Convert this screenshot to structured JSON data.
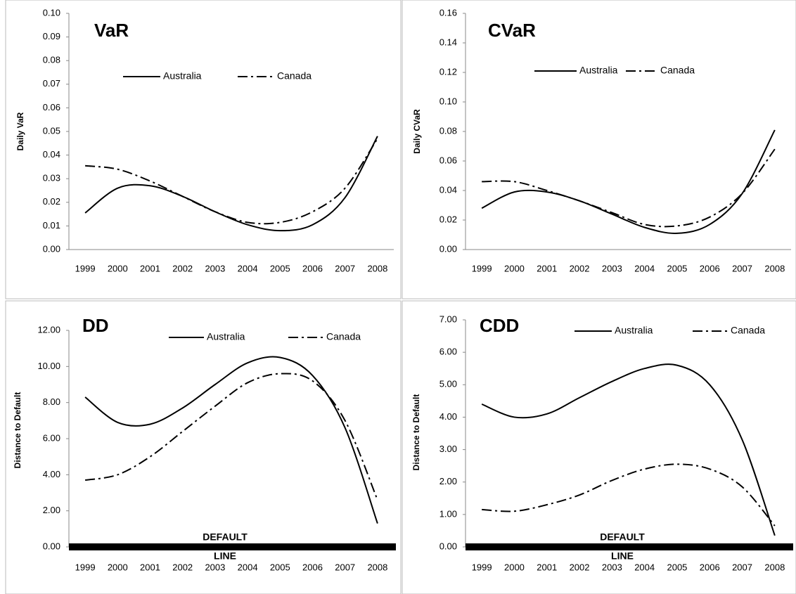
{
  "chart_data": [
    {
      "type": "line",
      "title": "VaR",
      "y_label": "Daily  VaR",
      "categories": [
        "1999",
        "2000",
        "2001",
        "2002",
        "2003",
        "2004",
        "2005",
        "2006",
        "2007",
        "2008"
      ],
      "series": [
        {
          "name": "Australia",
          "color": "#000000",
          "style": "solid",
          "values": [
            0.0155,
            0.026,
            0.027,
            0.0225,
            0.016,
            0.0105,
            0.008,
            0.0105,
            0.022,
            0.048
          ]
        },
        {
          "name": "Canada",
          "color": "#000000",
          "style": "dash-dot",
          "values": [
            0.0355,
            0.034,
            0.029,
            0.0225,
            0.016,
            0.0115,
            0.0115,
            0.016,
            0.026,
            0.047
          ]
        }
      ],
      "ylim": [
        0,
        0.1
      ],
      "yticks": [
        {
          "value": 0,
          "label": "0.00"
        },
        {
          "value": 0.01,
          "label": "0.01"
        },
        {
          "value": 0.02,
          "label": "0.02"
        },
        {
          "value": 0.03,
          "label": "0.03"
        },
        {
          "value": 0.04,
          "label": "0.04"
        },
        {
          "value": 0.05,
          "label": "0.05"
        },
        {
          "value": 0.06,
          "label": "0.06"
        },
        {
          "value": 0.07,
          "label": "0.07"
        },
        {
          "value": 0.08,
          "label": "0.08"
        },
        {
          "value": 0.09,
          "label": "0.09"
        },
        {
          "value": 0.1,
          "label": "0.10"
        }
      ],
      "baseline": "thin"
    },
    {
      "type": "line",
      "title": "CVaR",
      "y_label": "Daily CVaR",
      "categories": [
        "1999",
        "2000",
        "2001",
        "2002",
        "2003",
        "2004",
        "2005",
        "2006",
        "2007",
        "2008"
      ],
      "series": [
        {
          "name": "Australia",
          "color": "#000000",
          "style": "solid",
          "values": [
            0.028,
            0.039,
            0.039,
            0.033,
            0.024,
            0.015,
            0.011,
            0.017,
            0.038,
            0.081
          ]
        },
        {
          "name": "Canada",
          "color": "#000000",
          "style": "dash-dot",
          "values": [
            0.046,
            0.046,
            0.04,
            0.033,
            0.025,
            0.017,
            0.016,
            0.022,
            0.038,
            0.068
          ]
        }
      ],
      "ylim": [
        0,
        0.16
      ],
      "yticks": [
        {
          "value": 0,
          "label": "0.00"
        },
        {
          "value": 0.02,
          "label": "0.02"
        },
        {
          "value": 0.04,
          "label": "0.04"
        },
        {
          "value": 0.06,
          "label": "0.06"
        },
        {
          "value": 0.08,
          "label": "0.08"
        },
        {
          "value": 0.1,
          "label": "0.10"
        },
        {
          "value": 0.12,
          "label": "0.12"
        },
        {
          "value": 0.14,
          "label": "0.14"
        },
        {
          "value": 0.16,
          "label": "0.16"
        }
      ],
      "baseline": "thin"
    },
    {
      "type": "line",
      "title": "DD",
      "y_label": "Distance to Default",
      "categories": [
        "1999",
        "2000",
        "2001",
        "2002",
        "2003",
        "2004",
        "2005",
        "2006",
        "2007",
        "2008"
      ],
      "series": [
        {
          "name": "Australia",
          "color": "#000000",
          "style": "solid",
          "values": [
            8.3,
            6.9,
            6.8,
            7.7,
            9.0,
            10.2,
            10.5,
            9.5,
            6.6,
            1.3
          ]
        },
        {
          "name": "Canada",
          "color": "#000000",
          "style": "dash-dot",
          "values": [
            3.7,
            4.0,
            5.0,
            6.4,
            7.8,
            9.1,
            9.6,
            9.2,
            7.0,
            2.6
          ]
        }
      ],
      "ylim": [
        0,
        12
      ],
      "yticks": [
        {
          "value": 0,
          "label": "0.00"
        },
        {
          "value": 2,
          "label": "2.00"
        },
        {
          "value": 4,
          "label": "4.00"
        },
        {
          "value": 6,
          "label": "6.00"
        },
        {
          "value": 8,
          "label": "8.00"
        },
        {
          "value": 10,
          "label": "10.00"
        },
        {
          "value": 12,
          "label": "12.00"
        }
      ],
      "baseline": "thick",
      "annotations": [
        "DEFAULT",
        "LINE"
      ]
    },
    {
      "type": "line",
      "title": "CDD",
      "y_label": "Distance to Default",
      "categories": [
        "1999",
        "2000",
        "2001",
        "2002",
        "2003",
        "2004",
        "2005",
        "2006",
        "2007",
        "2008"
      ],
      "series": [
        {
          "name": "Australia",
          "color": "#000000",
          "style": "solid",
          "values": [
            4.4,
            4.0,
            4.1,
            4.6,
            5.1,
            5.5,
            5.6,
            5.0,
            3.3,
            0.35
          ]
        },
        {
          "name": "Canada",
          "color": "#000000",
          "style": "dash-dot",
          "values": [
            1.15,
            1.1,
            1.3,
            1.6,
            2.05,
            2.4,
            2.55,
            2.4,
            1.85,
            0.65
          ]
        }
      ],
      "ylim": [
        0,
        7
      ],
      "yticks": [
        {
          "value": 0,
          "label": "0.00"
        },
        {
          "value": 1,
          "label": "1.00"
        },
        {
          "value": 2,
          "label": "2.00"
        },
        {
          "value": 3,
          "label": "3.00"
        },
        {
          "value": 4,
          "label": "4.00"
        },
        {
          "value": 5,
          "label": "5.00"
        },
        {
          "value": 6,
          "label": "6.00"
        },
        {
          "value": 7,
          "label": "7.00"
        }
      ],
      "baseline": "thick",
      "annotations": [
        "DEFAULT",
        "LINE"
      ]
    }
  ]
}
